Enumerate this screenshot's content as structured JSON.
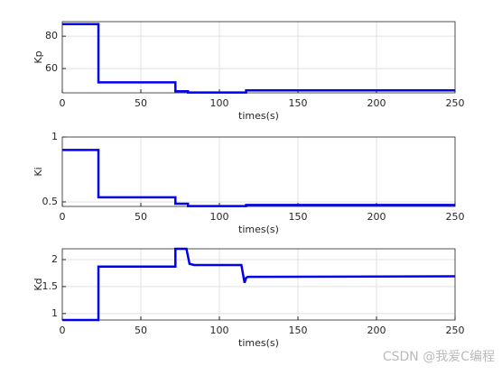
{
  "chart_data": [
    {
      "type": "line",
      "xlabel": "times(s)",
      "ylabel": "Kp",
      "xlim": [
        0,
        250
      ],
      "xticks": [
        0,
        50,
        100,
        150,
        200,
        250
      ],
      "ylim": [
        45,
        89
      ],
      "yticks": [
        60,
        80
      ],
      "grid": true,
      "series": [
        {
          "color": "#0000ee",
          "x": [
            0,
            23,
            23,
            72,
            72,
            80,
            80,
            117,
            117,
            250
          ],
          "values": [
            87.5,
            87.5,
            51.5,
            51.5,
            46,
            46,
            45.2,
            45.2,
            46.5,
            46.5
          ]
        }
      ]
    },
    {
      "type": "line",
      "xlabel": "times(s)",
      "ylabel": "Ki",
      "xlim": [
        0,
        250
      ],
      "xticks": [
        0,
        50,
        100,
        150,
        200,
        250
      ],
      "ylim": [
        0.465,
        1
      ],
      "yticks": [
        0.5,
        1
      ],
      "grid": true,
      "series": [
        {
          "color": "#0000ee",
          "x": [
            0,
            23,
            23,
            72,
            72,
            80,
            80,
            117,
            117,
            250
          ],
          "values": [
            0.9,
            0.9,
            0.535,
            0.535,
            0.486,
            0.486,
            0.468,
            0.468,
            0.476,
            0.476
          ]
        }
      ]
    },
    {
      "type": "line",
      "xlabel": "times(s)",
      "ylabel": "Kd",
      "xlim": [
        0,
        250
      ],
      "xticks": [
        0,
        50,
        100,
        150,
        200,
        250
      ],
      "ylim": [
        0.88,
        2.2
      ],
      "yticks": [
        1,
        1.5,
        2
      ],
      "grid": true,
      "series": [
        {
          "color": "#0000ee",
          "x": [
            0,
            23,
            23,
            72,
            72,
            79,
            81,
            84,
            114,
            116,
            117,
            118,
            250
          ],
          "values": [
            0.88,
            0.88,
            1.87,
            1.87,
            2.2,
            2.2,
            1.92,
            1.9,
            1.9,
            1.57,
            1.66,
            1.68,
            1.69
          ]
        }
      ]
    }
  ],
  "watermark": "CSDN @我爱C编程"
}
